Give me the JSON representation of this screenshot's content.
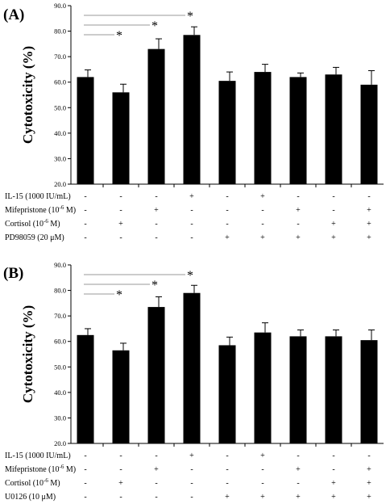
{
  "chart_data": [
    {
      "type": "bar",
      "panel_label": "(A)",
      "ylabel": "Cytotoxicity (%)",
      "ylim": [
        20.0,
        90.0
      ],
      "yticks": [
        "20.0",
        "30.0",
        "40.0",
        "50.0",
        "60.0",
        "70.0",
        "80.0",
        "90.0"
      ],
      "grid": false,
      "values": [
        62.0,
        56.0,
        73.0,
        78.5,
        60.5,
        64.0,
        62.0,
        63.0,
        59.0
      ],
      "errors": [
        2.8,
        3.2,
        4.0,
        3.2,
        3.5,
        3.0,
        1.6,
        2.8,
        5.5
      ],
      "treatments": [
        {
          "label": "IL-15 (1000 IU/mL)",
          "signs": [
            "-",
            "-",
            "-",
            "+",
            "-",
            "+",
            "-",
            "-",
            "-"
          ]
        },
        {
          "label": "Mifepristone (10",
          "sup": "-6",
          "tail": " M)",
          "signs": [
            "-",
            "-",
            "+",
            "-",
            "-",
            "-",
            "+",
            "-",
            "+"
          ]
        },
        {
          "label": "Cortisol (10",
          "sup": "-6",
          "tail": " M)",
          "signs": [
            "-",
            "+",
            "-",
            "-",
            "-",
            "-",
            "-",
            "+",
            "+"
          ]
        },
        {
          "label": "PD98059 (20 μM)",
          "signs": [
            "-",
            "-",
            "-",
            "-",
            "+",
            "+",
            "+",
            "+",
            "+"
          ]
        }
      ],
      "significance": [
        {
          "from": 0,
          "to": 3,
          "label": "*"
        },
        {
          "from": 0,
          "to": 2,
          "label": "*"
        },
        {
          "from": 0,
          "to": 1,
          "label": "*"
        }
      ]
    },
    {
      "type": "bar",
      "panel_label": "(B)",
      "ylabel": "Cytotoxicity (%)",
      "ylim": [
        20.0,
        90.0
      ],
      "yticks": [
        "20.0",
        "30.0",
        "40.0",
        "50.0",
        "60.0",
        "70.0",
        "80.0",
        "90.0"
      ],
      "grid": false,
      "values": [
        62.5,
        56.5,
        73.5,
        79.0,
        58.5,
        63.5,
        62.0,
        62.0,
        60.5
      ],
      "errors": [
        2.5,
        2.8,
        4.0,
        3.0,
        3.2,
        3.8,
        2.5,
        2.5,
        4.0
      ],
      "treatments": [
        {
          "label": "IL-15 (1000 IU/mL)",
          "signs": [
            "-",
            "-",
            "-",
            "+",
            "-",
            "+",
            "-",
            "-",
            "-"
          ]
        },
        {
          "label": "Mifepristone (10",
          "sup": "-6",
          "tail": " M)",
          "signs": [
            "-",
            "-",
            "+",
            "-",
            "-",
            "-",
            "+",
            "-",
            "+"
          ]
        },
        {
          "label": "Cortisol (10",
          "sup": "-6",
          "tail": " M)",
          "signs": [
            "-",
            "+",
            "-",
            "-",
            "-",
            "-",
            "-",
            "+",
            "+"
          ]
        },
        {
          "label": "U0126 (10 μM)",
          "signs": [
            "-",
            "-",
            "-",
            "-",
            "+",
            "+",
            "+",
            "+",
            "+"
          ]
        }
      ],
      "significance": [
        {
          "from": 0,
          "to": 3,
          "label": "*"
        },
        {
          "from": 0,
          "to": 2,
          "label": "*"
        },
        {
          "from": 0,
          "to": 1,
          "label": "*"
        }
      ]
    }
  ]
}
